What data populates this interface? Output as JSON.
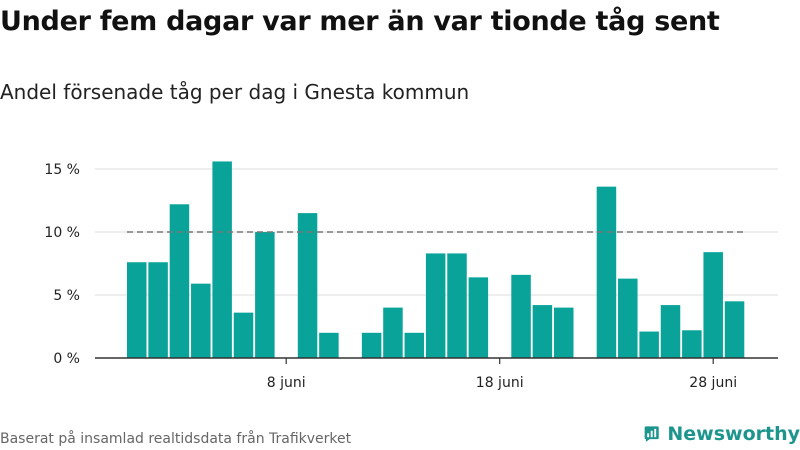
{
  "title": "Under fem dagar var mer än var tionde tåg sent",
  "subtitle": "Andel försenade tåg per dag i Gnesta kommun",
  "footer": "Baserat på insamlad realtidsdata från Trafikverket",
  "brand": {
    "name": "Newsworthy",
    "icon": "newsworthy-logo-icon"
  },
  "colors": {
    "bar": "#0aa39a",
    "threshold": "#777777",
    "grid": "#dddddd",
    "axis": "#333333",
    "brand": "#1c958d"
  },
  "chart_data": {
    "type": "bar",
    "x": [
      "2024-06-01",
      "2024-06-02",
      "2024-06-03",
      "2024-06-04",
      "2024-06-05",
      "2024-06-06",
      "2024-06-07",
      "2024-06-08",
      "2024-06-09",
      "2024-06-10",
      "2024-06-11",
      "2024-06-12",
      "2024-06-13",
      "2024-06-14",
      "2024-06-15",
      "2024-06-16",
      "2024-06-17",
      "2024-06-18",
      "2024-06-19",
      "2024-06-20",
      "2024-06-21",
      "2024-06-22",
      "2024-06-23",
      "2024-06-24",
      "2024-06-25",
      "2024-06-26",
      "2024-06-27",
      "2024-06-28",
      "2024-06-29"
    ],
    "values": [
      7.6,
      7.6,
      12.2,
      5.9,
      15.6,
      3.6,
      10.0,
      null,
      11.5,
      2.0,
      null,
      2.0,
      4.0,
      2.0,
      8.3,
      8.3,
      6.4,
      null,
      6.6,
      4.2,
      4.0,
      null,
      13.6,
      6.3,
      2.1,
      4.2,
      2.2,
      8.4,
      4.5
    ],
    "threshold": 10,
    "xticks": [
      {
        "date": "2024-06-08",
        "label": "8 juni"
      },
      {
        "date": "2024-06-18",
        "label": "18 juni"
      },
      {
        "date": "2024-06-28",
        "label": "28 juni"
      }
    ],
    "yticks": [
      {
        "value": 0,
        "label": "0 %"
      },
      {
        "value": 5,
        "label": "5 %"
      },
      {
        "value": 10,
        "label": "10 %"
      },
      {
        "value": 15,
        "label": "15 %"
      }
    ],
    "ylim": [
      0,
      17.5
    ],
    "grid": true,
    "xlabel": "",
    "ylabel": ""
  }
}
